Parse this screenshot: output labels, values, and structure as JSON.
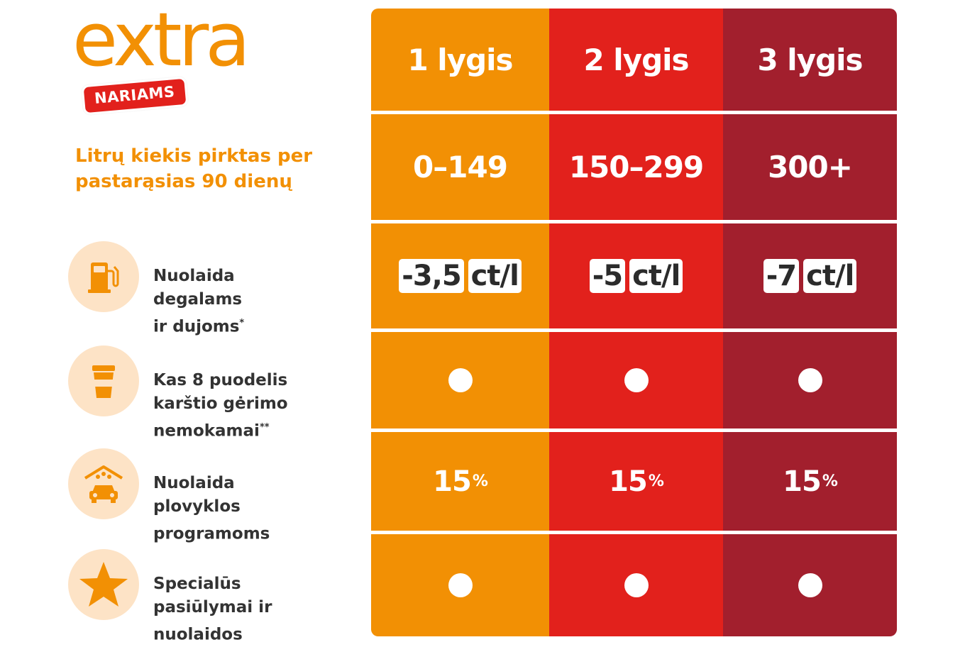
{
  "brand": {
    "logo_word": "extra",
    "logo_badge": "NARIAMS",
    "colors": {
      "orange": "#f29004",
      "red": "#e2211c",
      "maroon": "#a21f2d",
      "icon_bg": "#fde3c6"
    }
  },
  "subtitle": "Litrų kiekis pirktas per\npastarąsias 90 dienų",
  "features": [
    {
      "icon": "fuel-pump-icon",
      "label": "Nuolaida\ndegalams\nir dujoms",
      "mark": "*"
    },
    {
      "icon": "coffee-cup-icon",
      "label": "Kas 8 puodelis\nkarštio gėrimo\nnemokamai",
      "mark": "**"
    },
    {
      "icon": "car-wash-icon",
      "label": "Nuolaida\nplovyklos\nprogramoms",
      "mark": ""
    },
    {
      "icon": "star-icon",
      "label": "Specialūs\npasiūlymai ir\nnuolaidos",
      "mark": ""
    }
  ],
  "levels": [
    {
      "name": "1 lygis",
      "range": "0–149",
      "discount_value": "-3,5",
      "discount_unit": "ct/l",
      "free_drink": true,
      "wash_value": "15",
      "wash_unit": "%",
      "special_offers": true
    },
    {
      "name": "2 lygis",
      "range": "150–299",
      "discount_value": "-5",
      "discount_unit": "ct/l",
      "free_drink": true,
      "wash_value": "15",
      "wash_unit": "%",
      "special_offers": true
    },
    {
      "name": "3 lygis",
      "range": "300+",
      "discount_value": "-7",
      "discount_unit": "ct/l",
      "free_drink": true,
      "wash_value": "15",
      "wash_unit": "%",
      "special_offers": true
    }
  ]
}
